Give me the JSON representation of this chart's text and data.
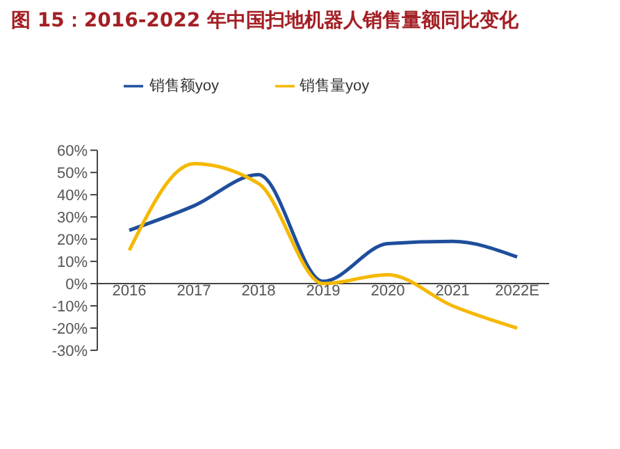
{
  "chart_data": {
    "type": "line",
    "title": "图 15：2016-2022 年中国扫地机器人销售量额同比变化",
    "categories": [
      "2016",
      "2017",
      "2018",
      "2019",
      "2020",
      "2021",
      "2022E"
    ],
    "series": [
      {
        "name": "销售额yoy",
        "color": "#1f4e9c",
        "values": [
          24,
          35,
          49,
          1,
          18,
          19,
          12
        ]
      },
      {
        "name": "销售量yoy",
        "color": "#f5b800",
        "values": [
          15,
          54,
          45,
          0,
          4,
          -10,
          -20
        ]
      }
    ],
    "ylim": [
      -30,
      60
    ],
    "yticks": [
      {
        "value": -30,
        "label": "-30%"
      },
      {
        "value": -20,
        "label": "-20%"
      },
      {
        "value": -10,
        "label": "-10%"
      },
      {
        "value": 0,
        "label": "0%"
      },
      {
        "value": 10,
        "label": "10%"
      },
      {
        "value": 20,
        "label": "20%"
      },
      {
        "value": 30,
        "label": "30%"
      },
      {
        "value": 40,
        "label": "40%"
      },
      {
        "value": 50,
        "label": "50%"
      },
      {
        "value": 60,
        "label": "60%"
      }
    ],
    "grid": false,
    "legend": "top",
    "marker": "none",
    "line_style": "solid"
  }
}
